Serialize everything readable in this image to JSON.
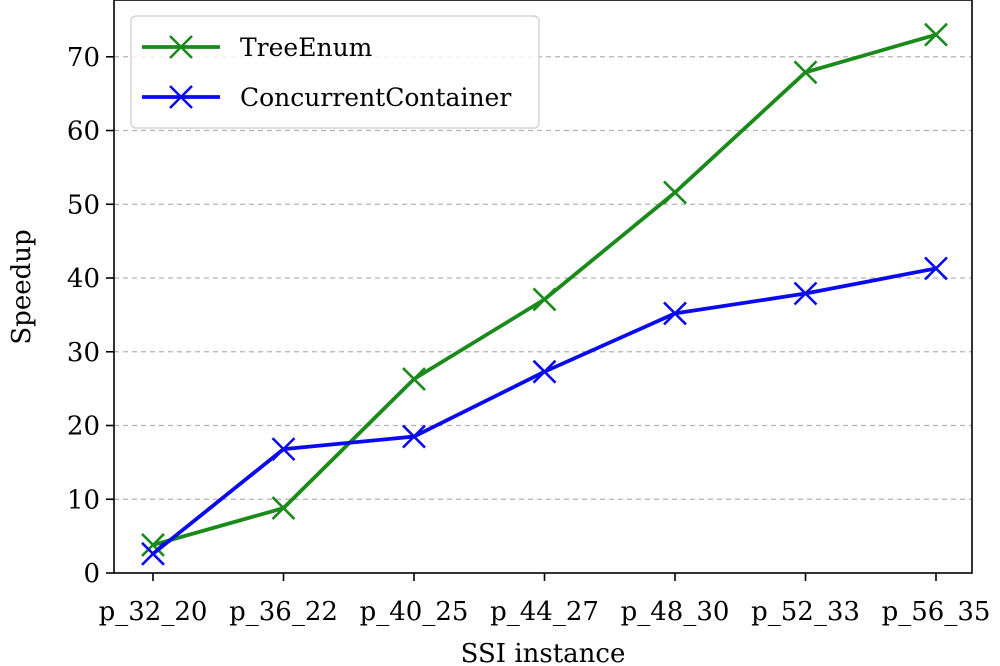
{
  "chart_data": {
    "type": "line",
    "categories": [
      "p_32_20",
      "p_36_22",
      "p_40_25",
      "p_44_27",
      "p_48_30",
      "p_52_33",
      "p_56_35"
    ],
    "series": [
      {
        "name": "TreeEnum",
        "color": "#1a8a1a",
        "values": [
          3.8,
          8.8,
          26.3,
          37.1,
          51.6,
          67.9,
          73.0
        ]
      },
      {
        "name": "ConcurrentContainer",
        "color": "#0a0aee",
        "values": [
          2.6,
          16.8,
          18.5,
          27.3,
          35.2,
          37.9,
          41.3
        ]
      }
    ],
    "xlabel": "SSI instance",
    "ylabel": "Speedup",
    "ylim": [
      0,
      75
    ],
    "yticks": [
      0,
      10,
      20,
      30,
      40,
      50,
      60,
      70
    ],
    "grid": "horizontal-dashed",
    "legend": "top-left",
    "marker": "x"
  }
}
